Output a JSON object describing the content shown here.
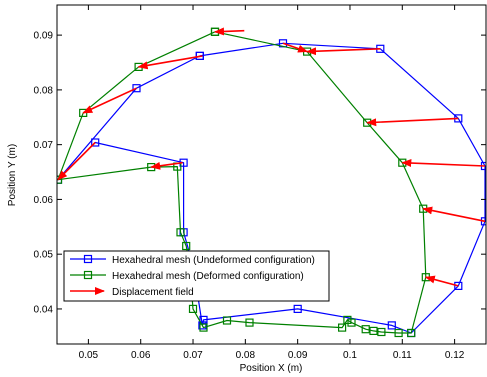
{
  "chart_data": {
    "type": "line",
    "title": "",
    "xlabel": "Position X (m)",
    "ylabel": "Position Y (m)",
    "xlim": [
      0.044,
      0.126
    ],
    "ylim": [
      0.0336,
      0.0955
    ],
    "xticks": [
      0.05,
      0.06,
      0.07,
      0.08,
      0.09,
      0.1,
      0.11,
      0.12
    ],
    "xtick_labels": [
      "0.05",
      "0.06",
      "0.07",
      "0.08",
      "0.09",
      "0.1",
      "0.11",
      "0.12"
    ],
    "yticks": [
      0.04,
      0.05,
      0.06,
      0.07,
      0.08,
      0.09
    ],
    "ytick_labels": [
      "0.04",
      "0.05",
      "0.06",
      "0.07",
      "0.08",
      "0.09"
    ],
    "grid": false,
    "legend_position": "bottom-left",
    "series": [
      {
        "name": "Hexahedral mesh (Undeformed configuration)",
        "color": "#0000ff",
        "marker": "square",
        "points": [
          [
            0.0713,
            0.0862
          ],
          [
            0.0872,
            0.0885
          ],
          [
            0.1058,
            0.0875
          ],
          [
            0.1207,
            0.0748
          ],
          [
            0.1258,
            0.0661
          ],
          [
            0.1258,
            0.056
          ],
          [
            0.1207,
            0.0442
          ],
          [
            0.1117,
            0.0356
          ],
          [
            0.108,
            0.037
          ],
          [
            0.09,
            0.04
          ],
          [
            0.072,
            0.038
          ],
          [
            0.0718,
            0.037
          ],
          [
            0.07,
            0.048
          ],
          [
            0.0682,
            0.054
          ],
          [
            0.0682,
            0.0667
          ],
          [
            0.0513,
            0.0704
          ],
          [
            0.0442,
            0.0636
          ],
          [
            0.0592,
            0.0803
          ],
          [
            0.0713,
            0.0862
          ]
        ]
      },
      {
        "name": "Hexahedral mesh (Deformed configuration)",
        "color": "#008000",
        "marker": "square",
        "points": [
          [
            0.0742,
            0.0906
          ],
          [
            0.0918,
            0.087
          ],
          [
            0.1033,
            0.074
          ],
          [
            0.11,
            0.0667
          ],
          [
            0.114,
            0.0583
          ],
          [
            0.1145,
            0.0458
          ],
          [
            0.1117,
            0.0356
          ],
          [
            0.1093,
            0.0356
          ],
          [
            0.106,
            0.0358
          ],
          [
            0.1045,
            0.036
          ],
          [
            0.103,
            0.0363
          ],
          [
            0.1003,
            0.0375
          ],
          [
            0.0995,
            0.038
          ],
          [
            0.0985,
            0.0366
          ],
          [
            0.0808,
            0.0375
          ],
          [
            0.0765,
            0.0379
          ],
          [
            0.072,
            0.0366
          ],
          [
            0.07,
            0.04
          ],
          [
            0.0693,
            0.0485
          ],
          [
            0.0687,
            0.0515
          ],
          [
            0.0676,
            0.054
          ],
          [
            0.067,
            0.066
          ],
          [
            0.062,
            0.0659
          ],
          [
            0.0442,
            0.0636
          ],
          [
            0.049,
            0.0758
          ],
          [
            0.0596,
            0.0842
          ],
          [
            0.0742,
            0.0906
          ]
        ]
      }
    ],
    "displacement_field": {
      "name": "Displacement field",
      "color": "#ff0000",
      "vectors": [
        [
          [
            0.0798,
            0.0908
          ],
          [
            0.0742,
            0.0906
          ]
        ],
        [
          [
            0.0718,
            0.0862
          ],
          [
            0.0596,
            0.0842
          ]
        ],
        [
          [
            0.0592,
            0.0803
          ],
          [
            0.049,
            0.0758
          ]
        ],
        [
          [
            0.0513,
            0.0704
          ],
          [
            0.0442,
            0.0636
          ]
        ],
        [
          [
            0.068,
            0.0667
          ],
          [
            0.062,
            0.0659
          ]
        ],
        [
          [
            0.0872,
            0.0885
          ],
          [
            0.0918,
            0.087
          ]
        ],
        [
          [
            0.1058,
            0.0875
          ],
          [
            0.0918,
            0.087
          ]
        ],
        [
          [
            0.1207,
            0.0748
          ],
          [
            0.1033,
            0.074
          ]
        ],
        [
          [
            0.1258,
            0.0661
          ],
          [
            0.11,
            0.0667
          ]
        ],
        [
          [
            0.1258,
            0.056
          ],
          [
            0.114,
            0.0583
          ]
        ],
        [
          [
            0.1207,
            0.0442
          ],
          [
            0.1145,
            0.0458
          ]
        ]
      ]
    }
  }
}
